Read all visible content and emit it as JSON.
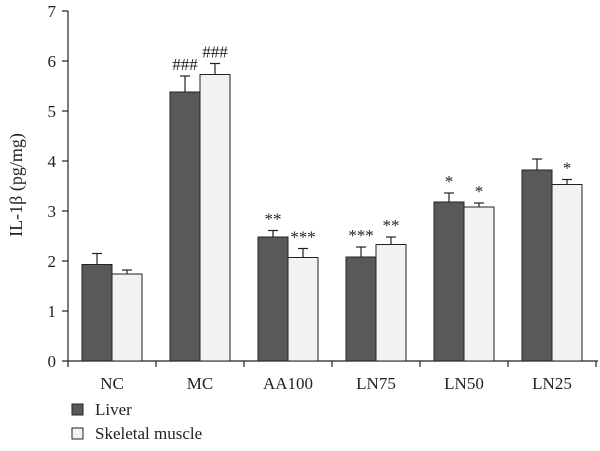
{
  "chart_data": {
    "type": "bar",
    "title": "",
    "xlabel": "",
    "ylabel": "IL-1β (pg/mg)",
    "ylim": [
      0,
      7
    ],
    "yticks": [
      0,
      1,
      2,
      3,
      4,
      5,
      6,
      7
    ],
    "grid": false,
    "legend_position": "bottom-left",
    "categories": [
      "NC",
      "MC",
      "AA100",
      "LN75",
      "LN50",
      "LN25"
    ],
    "series": [
      {
        "name": "Liver",
        "color": "#595959",
        "values": [
          1.93,
          5.38,
          2.48,
          2.08,
          3.18,
          3.82
        ],
        "errors": [
          0.22,
          0.32,
          0.13,
          0.2,
          0.18,
          0.22
        ],
        "annotations": [
          "",
          "###",
          "**",
          "***",
          "*",
          ""
        ]
      },
      {
        "name": "Skeletal muscle",
        "color": "#f2f2f2",
        "values": [
          1.74,
          5.73,
          2.07,
          2.33,
          3.08,
          3.53
        ],
        "errors": [
          0.08,
          0.22,
          0.18,
          0.15,
          0.08,
          0.1
        ],
        "annotations": [
          "",
          "###",
          "***",
          "**",
          "*",
          "*"
        ]
      }
    ]
  }
}
